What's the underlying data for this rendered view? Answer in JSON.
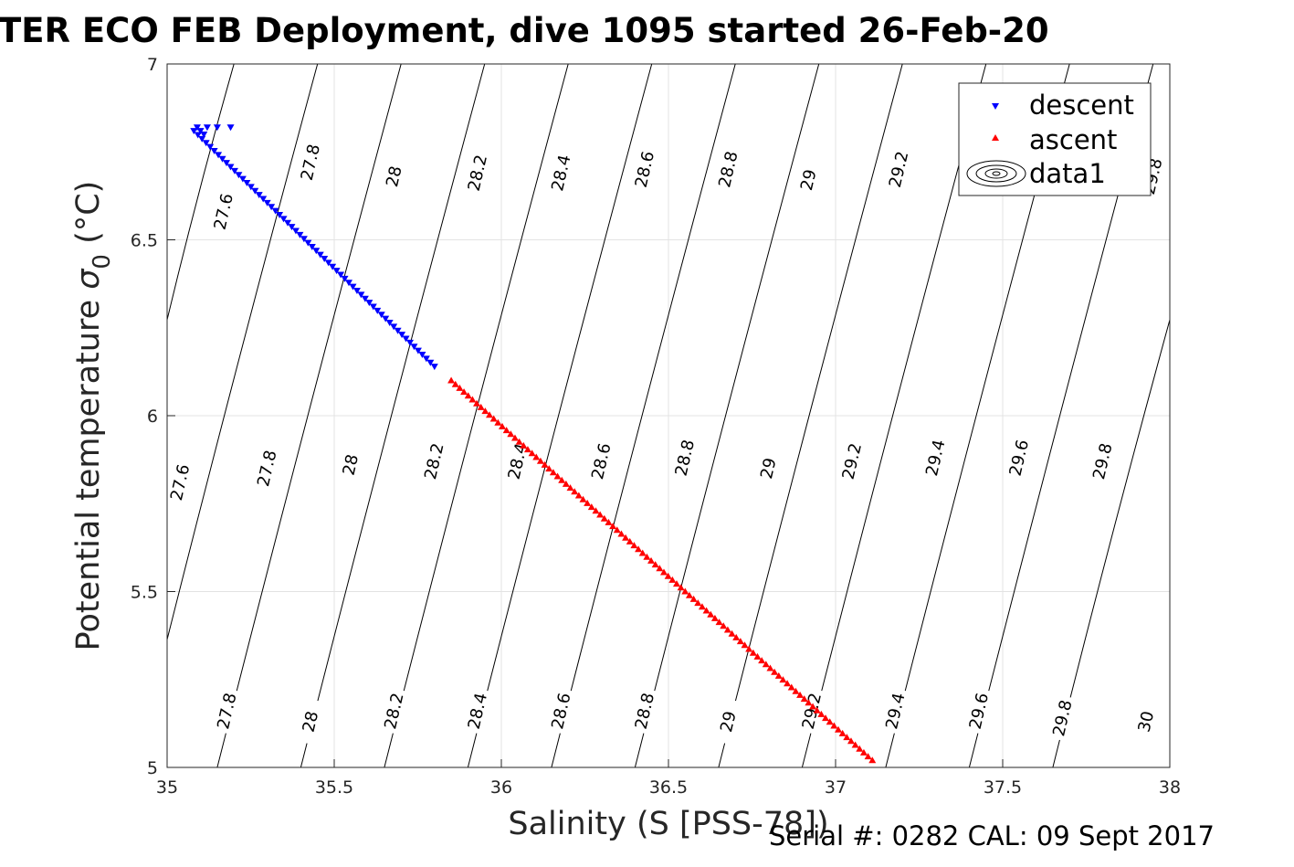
{
  "chart_data": {
    "type": "scatter",
    "title": "TER ECO FEB Deployment, dive 1095 started 26-Feb-20",
    "xlabel": "Salinity (S [PSS-78])",
    "ylabel_main": "Potential temperature ",
    "ylabel_sigma": "σ",
    "ylabel_sub": "0",
    "ylabel_unit": " (°C)",
    "xlim": [
      35,
      38
    ],
    "ylim": [
      5,
      7
    ],
    "x_ticks": [
      35,
      35.5,
      36,
      36.5,
      37,
      37.5,
      38
    ],
    "x_tick_labels": [
      "35",
      "35.5",
      "36",
      "36.5",
      "37",
      "37.5",
      "38"
    ],
    "y_ticks": [
      5,
      5.5,
      6,
      6.5,
      7
    ],
    "y_tick_labels": [
      "5",
      "5.5",
      "6",
      "6.5",
      "7"
    ],
    "grid": true,
    "legend_position": "top-right",
    "legend": [
      "descent",
      "ascent",
      "data1"
    ],
    "series": [
      {
        "name": "descent",
        "marker": "triangle-down",
        "color": "#0000ff",
        "start": [
          35.08,
          6.81
        ],
        "end": [
          35.8,
          6.14
        ],
        "points": 60,
        "hook": [
          [
            35.09,
            6.82
          ],
          [
            35.12,
            6.82
          ],
          [
            35.15,
            6.82
          ],
          [
            35.19,
            6.82
          ],
          [
            35.11,
            6.8
          ],
          [
            35.1,
            6.81
          ]
        ]
      },
      {
        "name": "ascent",
        "marker": "triangle-up",
        "color": "#ff0000",
        "start": [
          35.85,
          6.1
        ],
        "end": [
          37.11,
          5.02
        ],
        "points": 100
      }
    ],
    "contours": [
      {
        "label": "27.6",
        "s5": 34.65,
        "s7": 35.2
      },
      {
        "label": "27.8",
        "s5": 34.9,
        "s7": 35.45
      },
      {
        "label": "28",
        "s5": 35.15,
        "s7": 35.7
      },
      {
        "label": "28.2",
        "s5": 35.4,
        "s7": 35.95
      },
      {
        "label": "28.4",
        "s5": 35.65,
        "s7": 36.2
      },
      {
        "label": "28.6",
        "s5": 35.9,
        "s7": 36.45
      },
      {
        "label": "28.8",
        "s5": 36.15,
        "s7": 36.7
      },
      {
        "label": "29",
        "s5": 36.4,
        "s7": 36.95
      },
      {
        "label": "29.2",
        "s5": 36.65,
        "s7": 37.2
      },
      {
        "label": "29.4",
        "s5": 36.9,
        "s7": 37.45
      },
      {
        "label": "29.6",
        "s5": 37.15,
        "s7": 37.7
      },
      {
        "label": "29.8",
        "s5": 37.4,
        "s7": 37.95
      },
      {
        "label": "30",
        "s5": 37.65,
        "s7": 38.2
      }
    ],
    "contour_labels": [
      {
        "text": "27.6",
        "s": 35.17,
        "t": 6.58
      },
      {
        "text": "27.8",
        "s": 35.43,
        "t": 6.72
      },
      {
        "text": "28",
        "s": 35.68,
        "t": 6.68
      },
      {
        "text": "28.2",
        "s": 35.93,
        "t": 6.69
      },
      {
        "text": "28.4",
        "s": 36.18,
        "t": 6.69
      },
      {
        "text": "28.6",
        "s": 36.43,
        "t": 6.7
      },
      {
        "text": "28.8",
        "s": 36.68,
        "t": 6.7
      },
      {
        "text": "29",
        "s": 36.92,
        "t": 6.67
      },
      {
        "text": "29.2",
        "s": 37.19,
        "t": 6.7
      },
      {
        "text": "29.8",
        "s": 37.95,
        "t": 6.68
      },
      {
        "text": "27.6",
        "s": 35.04,
        "t": 5.81
      },
      {
        "text": "27.8",
        "s": 35.3,
        "t": 5.85
      },
      {
        "text": "28",
        "s": 35.55,
        "t": 5.86
      },
      {
        "text": "28.2",
        "s": 35.8,
        "t": 5.87
      },
      {
        "text": "28.4",
        "s": 36.05,
        "t": 5.87
      },
      {
        "text": "28.6",
        "s": 36.3,
        "t": 5.87
      },
      {
        "text": "28.8",
        "s": 36.55,
        "t": 5.88
      },
      {
        "text": "29",
        "s": 36.8,
        "t": 5.85
      },
      {
        "text": "29.2",
        "s": 37.05,
        "t": 5.87
      },
      {
        "text": "29.4",
        "s": 37.3,
        "t": 5.88
      },
      {
        "text": "29.6",
        "s": 37.55,
        "t": 5.88
      },
      {
        "text": "29.8",
        "s": 37.8,
        "t": 5.87
      },
      {
        "text": "27.8",
        "s": 35.18,
        "t": 5.16
      },
      {
        "text": "28",
        "s": 35.43,
        "t": 5.13
      },
      {
        "text": "28.2",
        "s": 35.68,
        "t": 5.16
      },
      {
        "text": "28.4",
        "s": 35.93,
        "t": 5.16
      },
      {
        "text": "28.6",
        "s": 36.18,
        "t": 5.16
      },
      {
        "text": "28.8",
        "s": 36.43,
        "t": 5.16
      },
      {
        "text": "29",
        "s": 36.68,
        "t": 5.13
      },
      {
        "text": "29.2",
        "s": 36.93,
        "t": 5.16
      },
      {
        "text": "29.4",
        "s": 37.18,
        "t": 5.16
      },
      {
        "text": "29.6",
        "s": 37.43,
        "t": 5.16
      },
      {
        "text": "29.8",
        "s": 37.68,
        "t": 5.14
      },
      {
        "text": "30",
        "s": 37.93,
        "t": 5.13
      }
    ]
  },
  "footer": {
    "note": "Serial #: 0282  CAL: 09 Sept 2017"
  }
}
